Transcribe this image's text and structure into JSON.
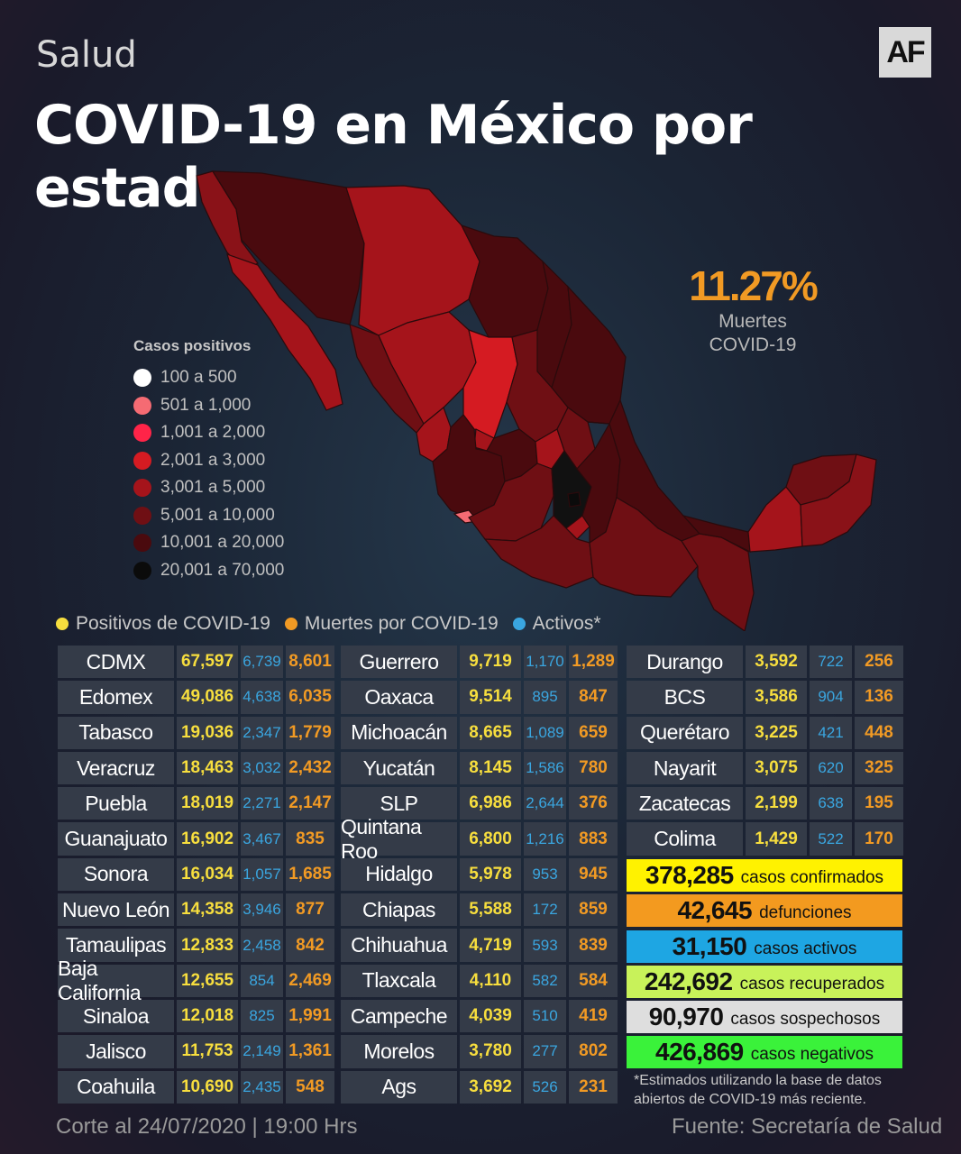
{
  "header": {
    "section": "Salud",
    "logo": "AF",
    "title": "COVID-19 en México por estados"
  },
  "highlight": {
    "value": "11.27%",
    "label_line1": "Muertes",
    "label_line2": "COVID-19",
    "color": "#f19a24"
  },
  "legend": {
    "title": "Casos positivos",
    "items": [
      {
        "label": "100  a  500",
        "color": "#ffffff"
      },
      {
        "label": "501  a  1,000",
        "color": "#f56b73"
      },
      {
        "label": "1,001 a 2,000",
        "color": "#ff2448"
      },
      {
        "label": "2,001 a 3,000",
        "color": "#d51b22"
      },
      {
        "label": "3,001  a  5,000",
        "color": "#a5141b"
      },
      {
        "label": "5,001 a  10,000",
        "color": "#6f0f14"
      },
      {
        "label": "10,001  a  20,000",
        "color": "#4a0a0e"
      },
      {
        "label": "20,001  a  70,000",
        "color": "#0b0b0b"
      }
    ]
  },
  "key": [
    {
      "label": "Positivos de COVID-19",
      "color": "#f7de3e"
    },
    {
      "label": "Muertes por COVID-19",
      "color": "#f19a24"
    },
    {
      "label": "Activos*",
      "color": "#3aa6e0"
    }
  ],
  "table": {
    "col1": [
      [
        "CDMX",
        "67,597",
        "6,739",
        "8,601"
      ],
      [
        "Edomex",
        "49,086",
        "4,638",
        "6,035"
      ],
      [
        "Tabasco",
        "19,036",
        "2,347",
        "1,779"
      ],
      [
        "Veracruz",
        "18,463",
        "3,032",
        "2,432"
      ],
      [
        "Puebla",
        "18,019",
        "2,271",
        "2,147"
      ],
      [
        "Guanajuato",
        "16,902",
        "3,467",
        "835"
      ],
      [
        "Sonora",
        "16,034",
        "1,057",
        "1,685"
      ],
      [
        "Nuevo León",
        "14,358",
        "3,946",
        "877"
      ],
      [
        "Tamaulipas",
        "12,833",
        "2,458",
        "842"
      ],
      [
        "Baja California",
        "12,655",
        "854",
        "2,469"
      ],
      [
        "Sinaloa",
        "12,018",
        "825",
        "1,991"
      ],
      [
        "Jalisco",
        "11,753",
        "2,149",
        "1,361"
      ],
      [
        "Coahuila",
        "10,690",
        "2,435",
        "548"
      ]
    ],
    "col2": [
      [
        "Guerrero",
        "9,719",
        "1,170",
        "1,289"
      ],
      [
        "Oaxaca",
        "9,514",
        "895",
        "847"
      ],
      [
        "Michoacán",
        "8,665",
        "1,089",
        "659"
      ],
      [
        "Yucatán",
        "8,145",
        "1,586",
        "780"
      ],
      [
        "SLP",
        "6,986",
        "2,644",
        "376"
      ],
      [
        "Quintana Roo",
        "6,800",
        "1,216",
        "883"
      ],
      [
        "Hidalgo",
        "5,978",
        "953",
        "945"
      ],
      [
        "Chiapas",
        "5,588",
        "172",
        "859"
      ],
      [
        "Chihuahua",
        "4,719",
        "593",
        "839"
      ],
      [
        "Tlaxcala",
        "4,110",
        "582",
        "584"
      ],
      [
        "Campeche",
        "4,039",
        "510",
        "419"
      ],
      [
        "Morelos",
        "3,780",
        "277",
        "802"
      ],
      [
        "Ags",
        "3,692",
        "526",
        "231"
      ]
    ],
    "col3": [
      [
        "Durango",
        "3,592",
        "722",
        "256"
      ],
      [
        "BCS",
        "3,586",
        "904",
        "136"
      ],
      [
        "Querétaro",
        "3,225",
        "421",
        "448"
      ],
      [
        "Nayarit",
        "3,075",
        "620",
        "325"
      ],
      [
        "Zacatecas",
        "2,199",
        "638",
        "195"
      ],
      [
        "Colima",
        "1,429",
        "522",
        "170"
      ]
    ]
  },
  "summary": [
    {
      "value": "378,285",
      "label": "casos confirmados",
      "color": "#fff200"
    },
    {
      "value": "42,645",
      "label": "defunciones",
      "color": "#f39a1f"
    },
    {
      "value": "31,150",
      "label": "casos activos",
      "color": "#1ea6e3"
    },
    {
      "value": "242,692",
      "label": "casos recuperados",
      "color": "#c8f25a"
    },
    {
      "value": "90,970",
      "label": "casos sospechosos",
      "color": "#dedede"
    },
    {
      "value": "426,869",
      "label": "casos negativos",
      "color": "#3af23a"
    }
  ],
  "note": {
    "line1": "*Estimados utilizando la base de datos",
    "line2": "abiertos de COVID-19 más reciente."
  },
  "footer": {
    "left": "Corte al 24/07/2020 | 19:00 Hrs",
    "right": "Fuente: Secretaría de Salud"
  }
}
